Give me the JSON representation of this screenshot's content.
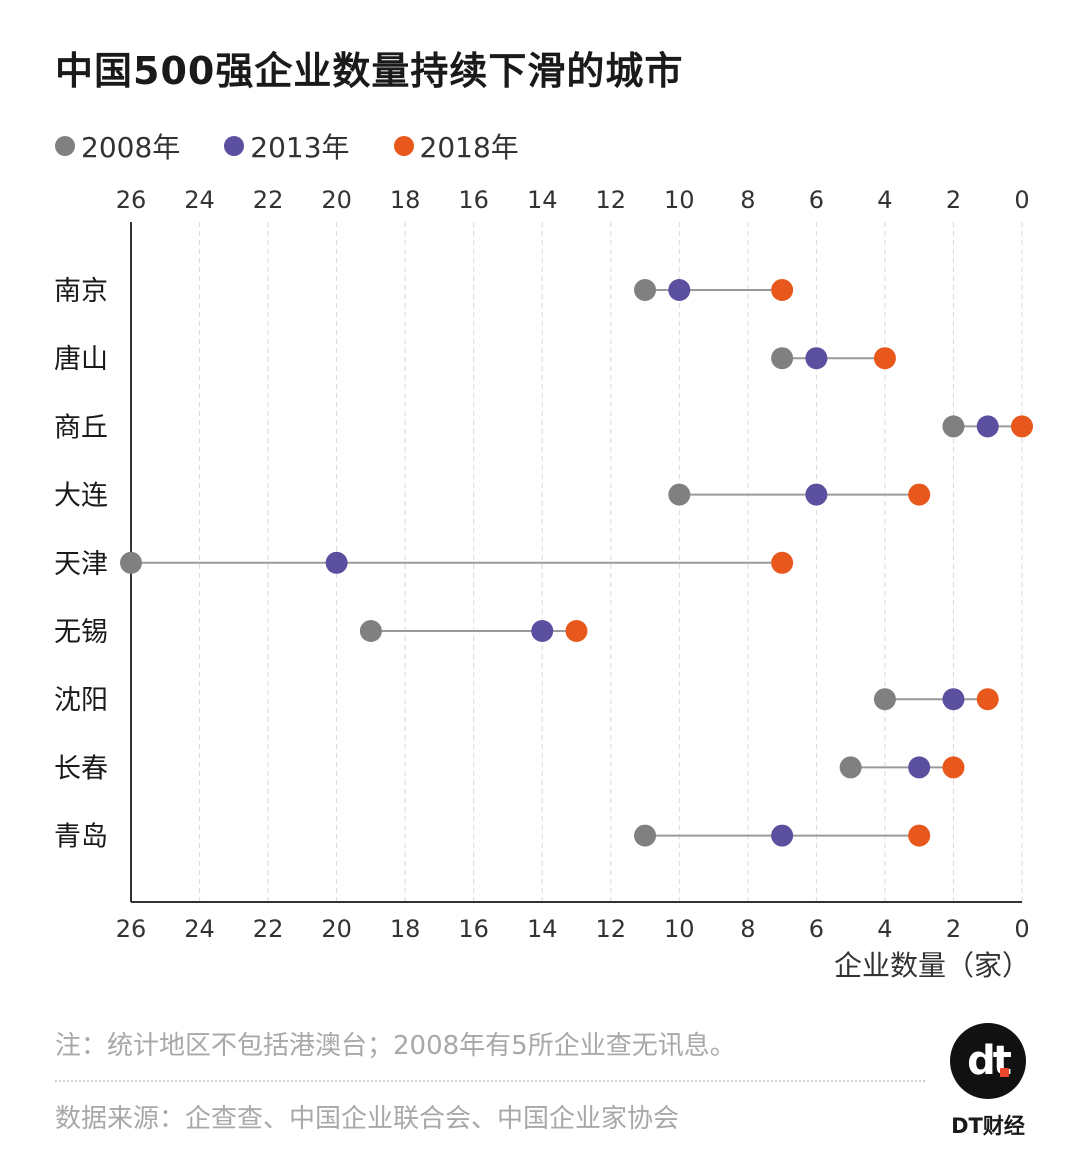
{
  "title": "中国500强企业数量持续下滑的城市",
  "legend": [
    {
      "label": "2008年",
      "color": "#808080"
    },
    {
      "label": "2013年",
      "color": "#5b4fa0"
    },
    {
      "label": "2018年",
      "color": "#e8581c"
    }
  ],
  "chart_data": {
    "type": "dot-plot",
    "title": "中国500强企业数量持续下滑的城市",
    "xlabel": "企业数量（家）",
    "xlim": [
      26,
      0
    ],
    "x_ticks": [
      26,
      24,
      22,
      20,
      18,
      16,
      14,
      12,
      10,
      8,
      6,
      4,
      2,
      0
    ],
    "categories": [
      "南京",
      "唐山",
      "商丘",
      "大连",
      "天津",
      "无锡",
      "沈阳",
      "长春",
      "青岛"
    ],
    "series": [
      {
        "name": "2008年",
        "color": "#808080",
        "values": [
          11,
          7,
          2,
          10,
          26,
          19,
          4,
          5,
          11
        ]
      },
      {
        "name": "2013年",
        "color": "#5b4fa0",
        "values": [
          10,
          6,
          1,
          6,
          20,
          14,
          2,
          3,
          7
        ]
      },
      {
        "name": "2018年",
        "color": "#e8581c",
        "values": [
          7,
          4,
          0,
          3,
          7,
          13,
          1,
          2,
          3
        ]
      }
    ],
    "connector_color": "#9a9a9a",
    "grid": true
  },
  "note": "注：统计地区不包括港澳台；2008年有5所企业查无讯息。",
  "source": "数据来源：企查查、中国企业联合会、中国企业家协会",
  "logo": {
    "mark": "dt",
    "text": "DT财经"
  }
}
